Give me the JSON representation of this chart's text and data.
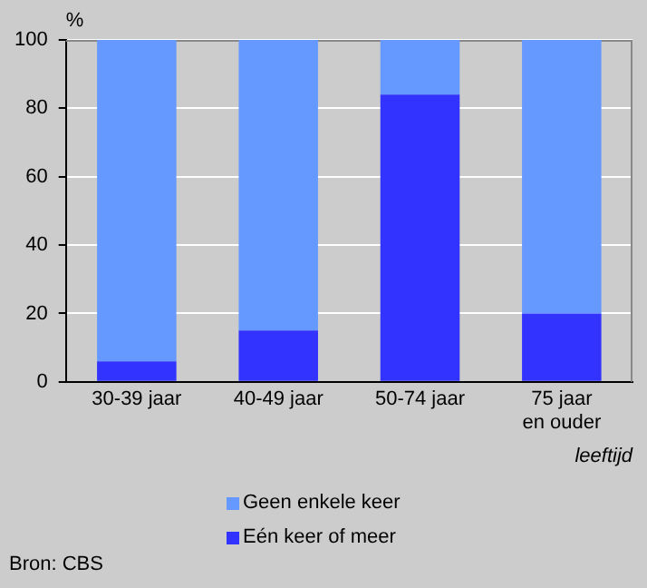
{
  "chart_data": {
    "type": "bar",
    "stacked": true,
    "ylabel": "%",
    "xlabel": "leeftijd",
    "categories": [
      "30-39 jaar",
      "40-49 jaar",
      "50-74 jaar",
      "75 jaar en ouder"
    ],
    "series": [
      {
        "name": "Eén keer of meer",
        "color": "#3333ff",
        "values": [
          6,
          15,
          84,
          20
        ]
      },
      {
        "name": "Geen enkele keer",
        "color": "#6699ff",
        "values": [
          94,
          85,
          16,
          80
        ]
      }
    ],
    "ylim": [
      0,
      100
    ],
    "yticks": [
      0,
      20,
      40,
      60,
      80,
      100
    ],
    "grid": "y",
    "legend": "bottom",
    "annotations": [
      "Bron: CBS"
    ]
  }
}
